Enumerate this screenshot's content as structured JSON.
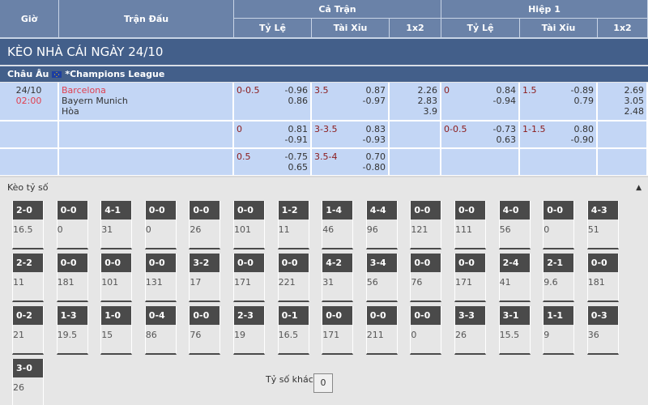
{
  "header": {
    "gio": "Giờ",
    "tran_dau": "Trận Đấu",
    "ca_tran": "Cả Trận",
    "hiep1": "Hiệp 1",
    "ty_le": "Tỷ Lệ",
    "tai_xiu": "Tài Xỉu",
    "x12": "1x2"
  },
  "title": "KÈO NHÀ CÁI NGÀY 24/10",
  "league": {
    "region": "Châu Âu",
    "name": "*Champions League",
    "flag_icon": "eu-flag-icon"
  },
  "match": {
    "date": "24/10",
    "time": "02:00",
    "home": "Barcelona",
    "away": "Bayern Munich",
    "draw": "Hòa"
  },
  "rows": [
    {
      "ft_hdp": "0-0.5",
      "ft_hdp_odds": [
        "-0.96",
        "0.86"
      ],
      "ft_ou": "3.5",
      "ft_ou_odds": [
        "0.87",
        "-0.97"
      ],
      "ft_1x2": [
        "2.26",
        "2.83",
        "3.9"
      ],
      "h1_hdp": "0",
      "h1_hdp_odds": [
        "0.84",
        "-0.94"
      ],
      "h1_ou": "1.5",
      "h1_ou_odds": [
        "-0.89",
        "0.79"
      ],
      "h1_1x2": [
        "2.69",
        "3.05",
        "2.48"
      ]
    },
    {
      "ft_hdp": "0",
      "ft_hdp_odds": [
        "0.81",
        "-0.91"
      ],
      "ft_ou": "3-3.5",
      "ft_ou_odds": [
        "0.83",
        "-0.93"
      ],
      "ft_1x2": [],
      "h1_hdp": "0-0.5",
      "h1_hdp_odds": [
        "-0.73",
        "0.63"
      ],
      "h1_ou": "1-1.5",
      "h1_ou_odds": [
        "0.80",
        "-0.90"
      ],
      "h1_1x2": []
    },
    {
      "ft_hdp": "0.5",
      "ft_hdp_odds": [
        "-0.75",
        "0.65"
      ],
      "ft_ou": "3.5-4",
      "ft_ou_odds": [
        "0.70",
        "-0.80"
      ],
      "ft_1x2": [],
      "h1_hdp": "",
      "h1_hdp_odds": [],
      "h1_ou": "",
      "h1_ou_odds": [],
      "h1_1x2": []
    }
  ],
  "correct_score": {
    "title": "Kèo tỷ số",
    "collapse_icon": "caret-up-icon",
    "cards": [
      [
        "2-0",
        "16.5"
      ],
      [
        "0-0",
        "0"
      ],
      [
        "4-1",
        "31"
      ],
      [
        "0-0",
        "0"
      ],
      [
        "0-0",
        "26"
      ],
      [
        "0-0",
        "101"
      ],
      [
        "1-2",
        "11"
      ],
      [
        "1-4",
        "46"
      ],
      [
        "4-4",
        "96"
      ],
      [
        "0-0",
        "121"
      ],
      [
        "0-0",
        "111"
      ],
      [
        "4-0",
        "56"
      ],
      [
        "0-0",
        "0"
      ],
      [
        "4-3",
        "51"
      ],
      [
        "2-2",
        "11"
      ],
      [
        "0-0",
        "181"
      ],
      [
        "0-0",
        "101"
      ],
      [
        "0-0",
        "131"
      ],
      [
        "3-2",
        "17"
      ],
      [
        "0-0",
        "171"
      ],
      [
        "0-0",
        "221"
      ],
      [
        "4-2",
        "31"
      ],
      [
        "3-4",
        "56"
      ],
      [
        "0-0",
        "76"
      ],
      [
        "0-0",
        "171"
      ],
      [
        "2-4",
        "41"
      ],
      [
        "2-1",
        "9.6"
      ],
      [
        "0-0",
        "181"
      ],
      [
        "0-2",
        "21"
      ],
      [
        "1-3",
        "19.5"
      ],
      [
        "1-0",
        "15"
      ],
      [
        "0-4",
        "86"
      ],
      [
        "0-0",
        "76"
      ],
      [
        "2-3",
        "19"
      ],
      [
        "0-1",
        "16.5"
      ],
      [
        "0-0",
        "171"
      ],
      [
        "0-0",
        "211"
      ],
      [
        "0-0",
        "0"
      ],
      [
        "3-3",
        "26"
      ],
      [
        "3-1",
        "15.5"
      ],
      [
        "1-1",
        "9"
      ],
      [
        "0-3",
        "36"
      ],
      [
        "3-0",
        "26"
      ]
    ],
    "other_label": "Tỷ số khác",
    "other_value": "0"
  }
}
